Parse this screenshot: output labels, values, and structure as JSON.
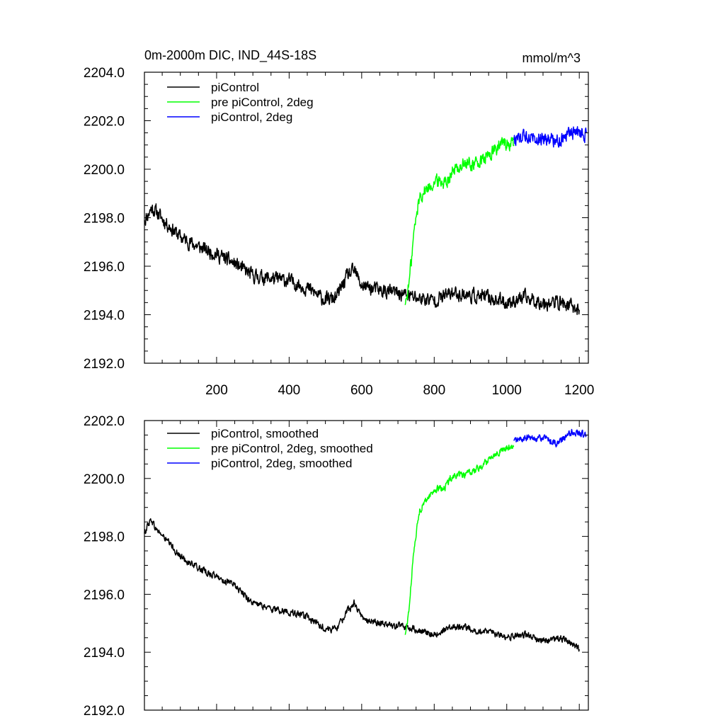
{
  "chart_data": [
    {
      "type": "line",
      "title": "0m-2000m DIC, IND_44S-18S",
      "units": "mmol/m^3",
      "xlim": [
        1,
        1225
      ],
      "ylim": [
        2192.0,
        2204.0
      ],
      "xticks": [
        200,
        400,
        600,
        800,
        1000,
        1200
      ],
      "xtick_labels": [
        "200",
        "400",
        "600",
        "800",
        "1000",
        "1200"
      ],
      "yticks": [
        2192.0,
        2194.0,
        2196.0,
        2198.0,
        2200.0,
        2202.0,
        2204.0
      ],
      "ytick_labels": [
        "2192.0",
        "2194.0",
        "2196.0",
        "2198.0",
        "2200.0",
        "2202.0",
        "2204.0"
      ],
      "legend_position": "top-left",
      "grid": false,
      "series": [
        {
          "name": "piControl",
          "color": "#000000",
          "noise": 0.45,
          "x": [
            1,
            10,
            20,
            30,
            60,
            100,
            150,
            200,
            250,
            300,
            350,
            400,
            450,
            500,
            530,
            560,
            580,
            600,
            650,
            700,
            750,
            800,
            850,
            900,
            950,
            1000,
            1050,
            1100,
            1150,
            1200
          ],
          "values": [
            2197.9,
            2198.1,
            2198.4,
            2198.3,
            2197.8,
            2197.2,
            2196.8,
            2196.5,
            2196.1,
            2195.6,
            2195.5,
            2195.4,
            2195.1,
            2194.6,
            2194.7,
            2195.6,
            2195.8,
            2195.2,
            2195.0,
            2194.9,
            2194.7,
            2194.6,
            2194.9,
            2194.8,
            2194.7,
            2194.5,
            2194.7,
            2194.5,
            2194.5,
            2194.2
          ]
        },
        {
          "name": "pre piControl, 2deg",
          "color": "#00ff00",
          "noise": 0.45,
          "x": [
            720,
            730,
            745,
            760,
            780,
            800,
            830,
            850,
            880,
            900,
            930,
            960,
            990,
            1020
          ],
          "values": [
            2194.4,
            2195.2,
            2197.5,
            2198.9,
            2199.2,
            2199.5,
            2199.5,
            2199.9,
            2200.2,
            2200.2,
            2200.3,
            2200.7,
            2201.1,
            2201.0
          ]
        },
        {
          "name": "piControl, 2deg",
          "color": "#0000ff",
          "noise": 0.45,
          "x": [
            1020,
            1060,
            1100,
            1140,
            1180,
            1220
          ],
          "values": [
            2201.2,
            2201.4,
            2201.3,
            2201.2,
            2201.5,
            2201.5
          ]
        }
      ]
    },
    {
      "type": "line",
      "xlim": [
        1,
        1225
      ],
      "ylim": [
        2192.0,
        2202.0
      ],
      "xticks": [
        200,
        400,
        600,
        800,
        1000,
        1200
      ],
      "yticks": [
        2192.0,
        2194.0,
        2196.0,
        2198.0,
        2200.0,
        2202.0
      ],
      "ytick_labels": [
        "2192.0",
        "2194.0",
        "2196.0",
        "2198.0",
        "2200.0",
        "2202.0"
      ],
      "legend_position": "top-left",
      "grid": false,
      "series": [
        {
          "name": "piControl, smoothed",
          "color": "#000000",
          "noise": 0.18,
          "x": [
            1,
            10,
            20,
            30,
            60,
            100,
            150,
            200,
            250,
            300,
            350,
            400,
            450,
            500,
            530,
            560,
            580,
            600,
            650,
            700,
            750,
            800,
            850,
            900,
            950,
            1000,
            1050,
            1100,
            1150,
            1200
          ],
          "values": [
            2198.1,
            2198.4,
            2198.6,
            2198.3,
            2197.9,
            2197.3,
            2196.9,
            2196.6,
            2196.3,
            2195.7,
            2195.5,
            2195.4,
            2195.2,
            2194.8,
            2194.8,
            2195.4,
            2195.7,
            2195.2,
            2195.0,
            2194.9,
            2194.8,
            2194.6,
            2194.9,
            2194.8,
            2194.7,
            2194.5,
            2194.6,
            2194.4,
            2194.5,
            2194.1
          ]
        },
        {
          "name": "pre piControl, 2deg, smoothed",
          "color": "#00ff00",
          "noise": 0.18,
          "x": [
            720,
            730,
            745,
            760,
            780,
            800,
            830,
            850,
            880,
            900,
            930,
            960,
            990,
            1020
          ],
          "values": [
            2194.6,
            2195.4,
            2197.7,
            2198.9,
            2199.3,
            2199.6,
            2199.7,
            2200.1,
            2200.1,
            2200.2,
            2200.4,
            2200.8,
            2201.0,
            2201.1
          ]
        },
        {
          "name": "piControl, 2deg, smoothed",
          "color": "#0000ff",
          "noise": 0.18,
          "x": [
            1020,
            1060,
            1100,
            1140,
            1180,
            1220
          ],
          "values": [
            2201.3,
            2201.4,
            2201.4,
            2201.2,
            2201.6,
            2201.5
          ]
        }
      ]
    }
  ]
}
